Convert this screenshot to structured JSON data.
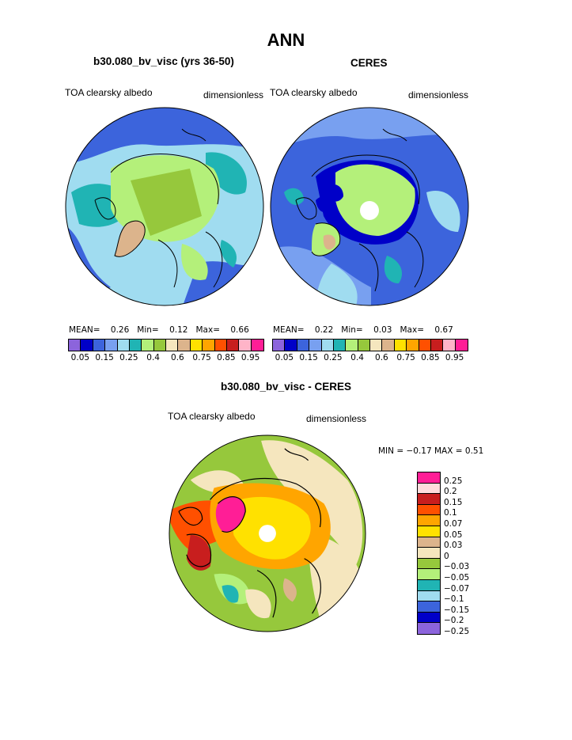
{
  "figure": {
    "title": "ANN"
  },
  "panels": [
    {
      "case_name": "b30.080_bv_visc (yrs 36-50)",
      "variable": "TOA clearsky albedo",
      "units": "dimensionless",
      "stats": {
        "mean_label": "MEAN=",
        "mean": "0.26",
        "min_label": "Min=",
        "min": "0.12",
        "max_label": "Max=",
        "max": "0.66"
      }
    },
    {
      "case_name": "CERES",
      "variable": "TOA clearsky albedo",
      "units": "dimensionless",
      "stats": {
        "mean_label": "MEAN=",
        "mean": "0.22",
        "min_label": "Min=",
        "min": "0.03",
        "max_label": "Max=",
        "max": "0.67"
      }
    },
    {
      "case_name": "b30.080_bv_visc - CERES",
      "variable": "TOA clearsky albedo",
      "units": "dimensionless",
      "minmax_text": "MIN =  −0.17  MAX =    0.51"
    }
  ],
  "colorbar_abs": {
    "colors": [
      "#8c64dc",
      "#0000c8",
      "#3c64dc",
      "#78a0f0",
      "#a0dcf0",
      "#20b4b4",
      "#b4f07a",
      "#96c83c",
      "#f5e6be",
      "#dcb48c",
      "#ffe100",
      "#ffa500",
      "#ff5000",
      "#c81e1e",
      "#ffb4c8",
      "#ff1e96"
    ],
    "ticks": [
      "0.05",
      "0.15",
      "0.25",
      "0.4",
      "0.6",
      "0.75",
      "0.85",
      "0.95"
    ]
  },
  "colorbar_diff": {
    "colors": [
      "#ff1e96",
      "#ffdcdc",
      "#c81e1e",
      "#ff5000",
      "#ffa500",
      "#ffe100",
      "#dcb48c",
      "#f5e6be",
      "#96c83c",
      "#b4f07a",
      "#20b4b4",
      "#a0dcf0",
      "#3c64dc",
      "#0000c8",
      "#8c64dc"
    ],
    "ticks": [
      "0.25",
      "0.2",
      "0.15",
      "0.1",
      "0.07",
      "0.05",
      "0.03",
      "0",
      "−0.03",
      "−0.05",
      "−0.07",
      "−0.1",
      "−0.15",
      "−0.2",
      "−0.25"
    ]
  }
}
